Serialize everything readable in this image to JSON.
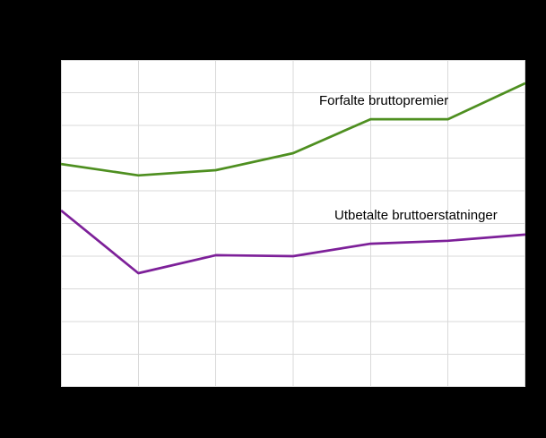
{
  "canvas": {
    "background_color": "#000000",
    "plot_background_color": "#ffffff",
    "grid_color": "#d9d9d9",
    "text_color": "#000000"
  },
  "chart_data": {
    "type": "line",
    "title": "",
    "xlabel": "",
    "ylabel": "",
    "x_tick_labels": [],
    "y_tick_labels": [],
    "legend_position": "inline-labels-on-plot",
    "grid": {
      "x_divisions": 6,
      "y_divisions": 10,
      "grid_on": true
    },
    "ylim": [
      0,
      10
    ],
    "value_scale_note": "Axis tick labels are not visible in the image; series values are estimated in gridline units (0 = bottom edge, 10 = top edge, 1 unit per horizontal gridline row).",
    "series": [
      {
        "name": "Forfalte bruttopremier",
        "color": "#4e8f20",
        "values": [
          6.82,
          6.47,
          6.63,
          7.15,
          8.19,
          8.19,
          9.29
        ]
      },
      {
        "name": "Utbetalte bruttoerstatninger",
        "color": "#7d2099",
        "values": [
          5.4,
          3.48,
          4.03,
          4.0,
          4.38,
          4.47,
          4.66
        ]
      }
    ]
  }
}
